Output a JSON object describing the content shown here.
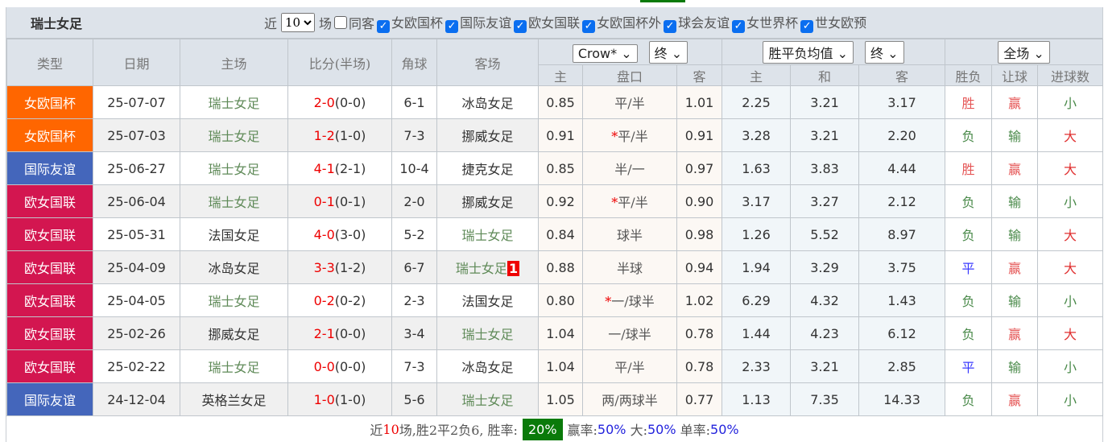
{
  "header": {
    "team": "瑞士女足",
    "recent_label": "近",
    "recent_value": "10",
    "games_label": "场",
    "same_away_label": "同客",
    "filters": [
      "女欧国杯",
      "国际友谊",
      "欧女国联",
      "女欧国杯外",
      "球会友谊",
      "女世界杯",
      "世女欧预"
    ]
  },
  "columns": {
    "type": "类型",
    "date": "日期",
    "home": "主场",
    "score": "比分(半场)",
    "corner": "角球",
    "away": "客场",
    "company_select": "Crow*",
    "handicap_time_select": "终",
    "odds_type_select": "胜平负均值",
    "odds_time_select": "终",
    "period_select": "全场",
    "sub": [
      "主",
      "盘口",
      "客",
      "主",
      "和",
      "客",
      "胜负",
      "让球",
      "进球数"
    ]
  },
  "type_colors": {
    "女欧国杯": "#ff6600",
    "国际友谊": "#4466bb",
    "欧女国联": "#d31650"
  },
  "result_colors": {
    "胜": "#e55555",
    "赢": "#e55555",
    "大": "#e03030",
    "负": "#4a8a4a",
    "输": "#4a8a4a",
    "小": "#4a8a4a",
    "平": "#3a3aff"
  },
  "rows": [
    {
      "type": "女欧国杯",
      "date": "25-07-07",
      "home": "瑞士女足",
      "home_sw": true,
      "score": "2-0",
      "half": "(0-0)",
      "corner": "6-1",
      "away": "冰岛女足",
      "away_sw": false,
      "h": "0.85",
      "pk": "平/半",
      "pk_star": false,
      "a": "1.01",
      "w": "2.25",
      "d": "3.21",
      "l": "3.17",
      "res": "胜",
      "hc": "赢",
      "ou": "小"
    },
    {
      "type": "女欧国杯",
      "date": "25-07-03",
      "home": "瑞士女足",
      "home_sw": true,
      "score": "1-2",
      "half": "(1-0)",
      "corner": "7-3",
      "away": "挪威女足",
      "away_sw": false,
      "h": "0.91",
      "pk": "平/半",
      "pk_star": true,
      "a": "0.91",
      "w": "3.28",
      "d": "3.21",
      "l": "2.20",
      "res": "负",
      "hc": "输",
      "ou": "大"
    },
    {
      "type": "国际友谊",
      "date": "25-06-27",
      "home": "瑞士女足",
      "home_sw": true,
      "score": "4-1",
      "half": "(2-1)",
      "corner": "10-4",
      "away": "捷克女足",
      "away_sw": false,
      "h": "0.85",
      "pk": "半/一",
      "pk_star": false,
      "a": "0.97",
      "w": "1.63",
      "d": "3.83",
      "l": "4.44",
      "res": "胜",
      "hc": "赢",
      "ou": "大"
    },
    {
      "type": "欧女国联",
      "date": "25-06-04",
      "home": "瑞士女足",
      "home_sw": true,
      "score": "0-1",
      "half": "(0-1)",
      "corner": "2-0",
      "away": "挪威女足",
      "away_sw": false,
      "h": "0.92",
      "pk": "平/半",
      "pk_star": true,
      "a": "0.90",
      "w": "3.17",
      "d": "3.27",
      "l": "2.12",
      "res": "负",
      "hc": "输",
      "ou": "小"
    },
    {
      "type": "欧女国联",
      "date": "25-05-31",
      "home": "法国女足",
      "home_sw": false,
      "score": "4-0",
      "half": "(3-0)",
      "corner": "5-2",
      "away": "瑞士女足",
      "away_sw": true,
      "h": "0.84",
      "pk": "球半",
      "pk_star": false,
      "a": "0.98",
      "w": "1.26",
      "d": "5.52",
      "l": "8.97",
      "res": "负",
      "hc": "输",
      "ou": "大"
    },
    {
      "type": "欧女国联",
      "date": "25-04-09",
      "home": "冰岛女足",
      "home_sw": false,
      "score": "3-3",
      "half": "(1-2)",
      "corner": "6-7",
      "away": "瑞士女足",
      "away_sw": true,
      "away_badge": "1",
      "h": "0.88",
      "pk": "半球",
      "pk_star": false,
      "a": "0.94",
      "w": "1.94",
      "d": "3.29",
      "l": "3.75",
      "res": "平",
      "hc": "赢",
      "ou": "大"
    },
    {
      "type": "欧女国联",
      "date": "25-04-05",
      "home": "瑞士女足",
      "home_sw": true,
      "score": "0-2",
      "half": "(0-2)",
      "corner": "2-3",
      "away": "法国女足",
      "away_sw": false,
      "h": "0.80",
      "pk": "一/球半",
      "pk_star": true,
      "a": "1.02",
      "w": "6.29",
      "d": "4.32",
      "l": "1.43",
      "res": "负",
      "hc": "输",
      "ou": "小"
    },
    {
      "type": "欧女国联",
      "date": "25-02-26",
      "home": "挪威女足",
      "home_sw": false,
      "score": "2-1",
      "half": "(0-0)",
      "corner": "3-4",
      "away": "瑞士女足",
      "away_sw": true,
      "h": "1.04",
      "pk": "一/球半",
      "pk_star": false,
      "a": "0.78",
      "w": "1.44",
      "d": "4.23",
      "l": "6.12",
      "res": "负",
      "hc": "赢",
      "ou": "大"
    },
    {
      "type": "欧女国联",
      "date": "25-02-22",
      "home": "瑞士女足",
      "home_sw": true,
      "score": "0-0",
      "half": "(0-0)",
      "corner": "7-3",
      "away": "冰岛女足",
      "away_sw": false,
      "h": "1.04",
      "pk": "平/半",
      "pk_star": false,
      "a": "0.78",
      "w": "2.33",
      "d": "3.21",
      "l": "2.85",
      "res": "平",
      "hc": "输",
      "ou": "小"
    },
    {
      "type": "国际友谊",
      "date": "24-12-04",
      "home": "英格兰女足",
      "home_sw": false,
      "score": "1-0",
      "half": "(1-0)",
      "corner": "5-6",
      "away": "瑞士女足",
      "away_sw": true,
      "h": "1.05",
      "pk": "两/两球半",
      "pk_star": false,
      "a": "0.77",
      "w": "1.13",
      "d": "7.35",
      "l": "14.33",
      "res": "负",
      "hc": "赢",
      "ou": "小"
    }
  ],
  "footer": {
    "prefix": "近",
    "count": "10",
    "summary": "场,胜2平2负6, 胜率:",
    "win_rate": "20%",
    "cover_label": "赢率:",
    "cover_rate": "50%",
    "over_label": "大:",
    "over_rate": "50%",
    "odd_label": "单率:",
    "odd_rate": "50%"
  }
}
